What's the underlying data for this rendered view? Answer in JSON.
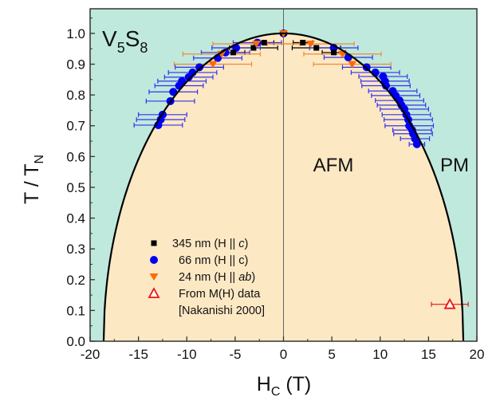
{
  "chart_data": {
    "type": "scatter",
    "title": "",
    "compound": {
      "base1": "V",
      "sub1": "5",
      "base2": "S",
      "sub2": "8"
    },
    "xlabel": {
      "main": "H",
      "sub": "C",
      "unit": " (T)"
    },
    "ylabel": {
      "main": "T / T",
      "sub": "N"
    },
    "xlim": [
      -20,
      20
    ],
    "ylim": [
      0,
      1.08
    ],
    "xticks": [
      "-20",
      "-15",
      "-10",
      "-5",
      "0",
      "5",
      "10",
      "15",
      "20"
    ],
    "yticks": [
      "0.0",
      "0.1",
      "0.2",
      "0.3",
      "0.4",
      "0.5",
      "0.6",
      "0.7",
      "0.8",
      "0.9",
      "1.0"
    ],
    "regions": [
      {
        "label": "AFM",
        "color": "#fde8c4"
      },
      {
        "label": "PM",
        "color": "#bfe9dd"
      }
    ],
    "boundary": {
      "Hc": 18.6,
      "color": "#000000"
    },
    "legend_placement": "bottom-left",
    "series": [
      {
        "name": {
          "pre": "345 nm (H || ",
          "it": "c",
          "post": ")"
        },
        "marker": "square",
        "color": "#000000",
        "points": [
          [
            -5.2,
            0.938,
            1.2
          ],
          [
            -3.1,
            0.953,
            2.5
          ],
          [
            -2.0,
            0.97,
            1.0
          ],
          [
            0,
            1.0,
            0.3
          ],
          [
            2.0,
            0.97,
            1.0
          ],
          [
            3.4,
            0.953,
            2.5
          ],
          [
            5.2,
            0.938,
            1.2
          ]
        ]
      },
      {
        "name": {
          "pre": "66 nm (H || c)",
          "it": "",
          "post": ""
        },
        "marker": "circle",
        "color": "#0000ee",
        "points": [
          [
            -12.95,
            0.702,
            2.5
          ],
          [
            -12.7,
            0.72,
            2.5
          ],
          [
            -12.5,
            0.736,
            2.5
          ],
          [
            -11.7,
            0.78,
            2.5
          ],
          [
            -11.4,
            0.81,
            2.5
          ],
          [
            -10.8,
            0.83,
            2.5
          ],
          [
            -10.5,
            0.845,
            2.5
          ],
          [
            -9.8,
            0.858,
            2.5
          ],
          [
            -9.4,
            0.873,
            2.5
          ],
          [
            -8.7,
            0.89,
            2.5
          ],
          [
            -6.8,
            0.92,
            2.5
          ],
          [
            -6.0,
            0.938,
            2.5
          ],
          [
            -4.9,
            0.953,
            2.5
          ],
          [
            -2.7,
            0.97,
            2.5
          ],
          [
            0,
            1.0,
            0.3
          ],
          [
            5.2,
            0.953,
            2.5
          ],
          [
            6.7,
            0.922,
            2.5
          ],
          [
            8.6,
            0.89,
            2.5
          ],
          [
            9.5,
            0.873,
            2.5
          ],
          [
            10.3,
            0.86,
            2.5
          ],
          [
            10.5,
            0.845,
            2.5
          ],
          [
            10.6,
            0.83,
            2.5
          ],
          [
            11.3,
            0.813,
            2.5
          ],
          [
            11.6,
            0.798,
            2.5
          ],
          [
            12.0,
            0.782,
            2.5
          ],
          [
            12.2,
            0.767,
            2.5
          ],
          [
            12.5,
            0.754,
            2.5
          ],
          [
            12.7,
            0.736,
            2.5
          ],
          [
            12.9,
            0.72,
            2.5
          ],
          [
            13.0,
            0.7,
            2.5
          ],
          [
            13.3,
            0.686,
            2.0
          ],
          [
            13.4,
            0.674,
            2.0
          ],
          [
            13.6,
            0.658,
            1.5
          ],
          [
            13.8,
            0.64,
            0.8
          ]
        ]
      },
      {
        "name": {
          "pre": "24 nm (H || ",
          "it": "ab",
          "post": ")"
        },
        "marker": "triangle-down",
        "color": "#ff6a00",
        "points": [
          [
            -7.3,
            0.9,
            4.0
          ],
          [
            -6.4,
            0.933,
            4.0
          ],
          [
            -2.8,
            0.966,
            4.5
          ],
          [
            0,
            1.0,
            0.3
          ],
          [
            2.8,
            0.966,
            4.5
          ],
          [
            6.1,
            0.933,
            4.0
          ],
          [
            7.1,
            0.9,
            4.0
          ]
        ]
      },
      {
        "name": {
          "pre": "From M(H) data",
          "it": "",
          "post": ""
        },
        "name2": "[Nakanishi 2000]",
        "marker": "triangle-open",
        "color": "#ee1111",
        "points": [
          [
            17.2,
            0.12,
            1.9
          ]
        ]
      }
    ]
  }
}
